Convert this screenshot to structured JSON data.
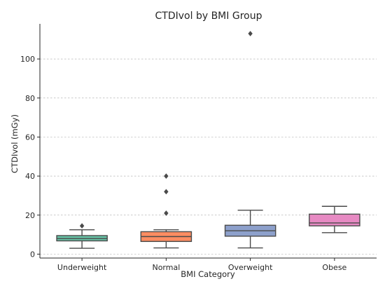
{
  "chart_data": {
    "type": "box",
    "title": "CTDIvol by BMI Group",
    "xlabel": "BMI Category",
    "ylabel": "CTDIvol (mGy)",
    "ylim": [
      -2,
      118
    ],
    "yticks": [
      0,
      20,
      40,
      60,
      80,
      100
    ],
    "grid": "horizontal-dashed",
    "groups": [
      {
        "category": "Underweight",
        "whisker_low": 3,
        "q1": 6.8,
        "median": 8,
        "q3": 9.5,
        "whisker_high": 12.5,
        "outliers": [
          14.5
        ],
        "color": "#66c2a5"
      },
      {
        "category": "Normal",
        "whisker_low": 3.2,
        "q1": 6.5,
        "median": 9,
        "q3": 11.5,
        "whisker_high": 12.5,
        "outliers": [
          21,
          32,
          40
        ],
        "color": "#fc8d62"
      },
      {
        "category": "Overweight",
        "whisker_low": 3.2,
        "q1": 9.2,
        "median": 12,
        "q3": 14.8,
        "whisker_high": 22.5,
        "outliers": [
          113
        ],
        "color": "#8da0cb"
      },
      {
        "category": "Obese",
        "whisker_low": 11,
        "q1": 14.5,
        "median": 16,
        "q3": 20.5,
        "whisker_high": 24.5,
        "outliers": [],
        "color": "#e78ac3"
      }
    ]
  }
}
